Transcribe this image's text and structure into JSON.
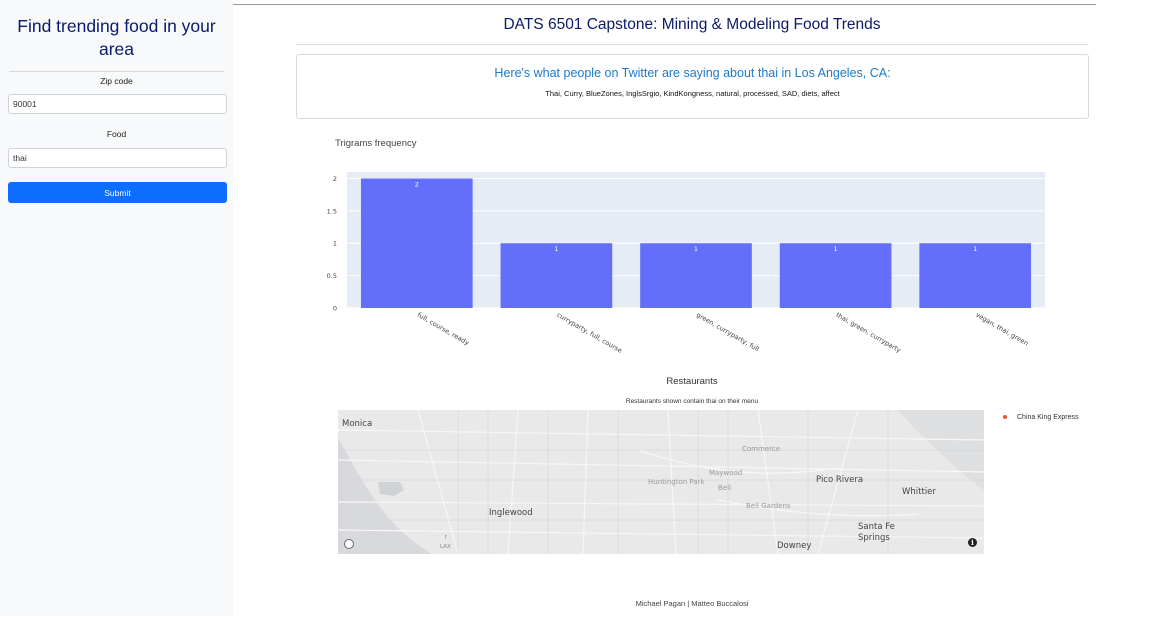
{
  "sidebar": {
    "title": "Find trending food in your area",
    "zip_label": "Zip code",
    "zip_value": "90001",
    "food_label": "Food",
    "food_value": "thai",
    "submit_label": "Submit"
  },
  "main": {
    "title": "DATS 6501 Capstone: Mining & Modeling Food Trends",
    "card_heading": "Here's what people on Twitter are saying about thai in Los Angeles, CA:",
    "card_keywords": "Thai, Curry, BlueZones, InglsSrgio, KindKongness, natural, processed, SAD, diets, affect",
    "chart_title": "Trigrams frequency",
    "map_title": "Restaurants",
    "map_subtitle": "Restaurants shown contain thai on their menu",
    "legend_item": "China King Express",
    "legend_color": "#ef553b",
    "footer": "Michael Pagan | Matteo Buccalosi"
  },
  "map_places": {
    "monica": "Monica",
    "commerce": "Commerce",
    "maywood": "Maywood",
    "huntington_park": "Huntington Park",
    "bell": "Bell",
    "pico_rivera": "Pico Rivera",
    "whittier": "Whittier",
    "bell_gardens": "Bell Gardens",
    "inglewood": "Inglewood",
    "santa_fe_springs": "Santa Fe Springs",
    "downey": "Downey",
    "lax": "LAX"
  },
  "chart_data": {
    "type": "bar",
    "title": "Trigrams frequency",
    "categories": [
      "full, course, ready",
      "curryparty, full, course",
      "green, curryparty, full",
      "thai, green, curryparty",
      "vegan, thai, green"
    ],
    "values": [
      2,
      1,
      1,
      1,
      1
    ],
    "ylim": [
      0,
      2.1
    ],
    "yticks": [
      0,
      0.5,
      1,
      1.5,
      2
    ],
    "bar_color": "#636efa",
    "plot_bg": "#e5ecf6",
    "grid": true
  }
}
